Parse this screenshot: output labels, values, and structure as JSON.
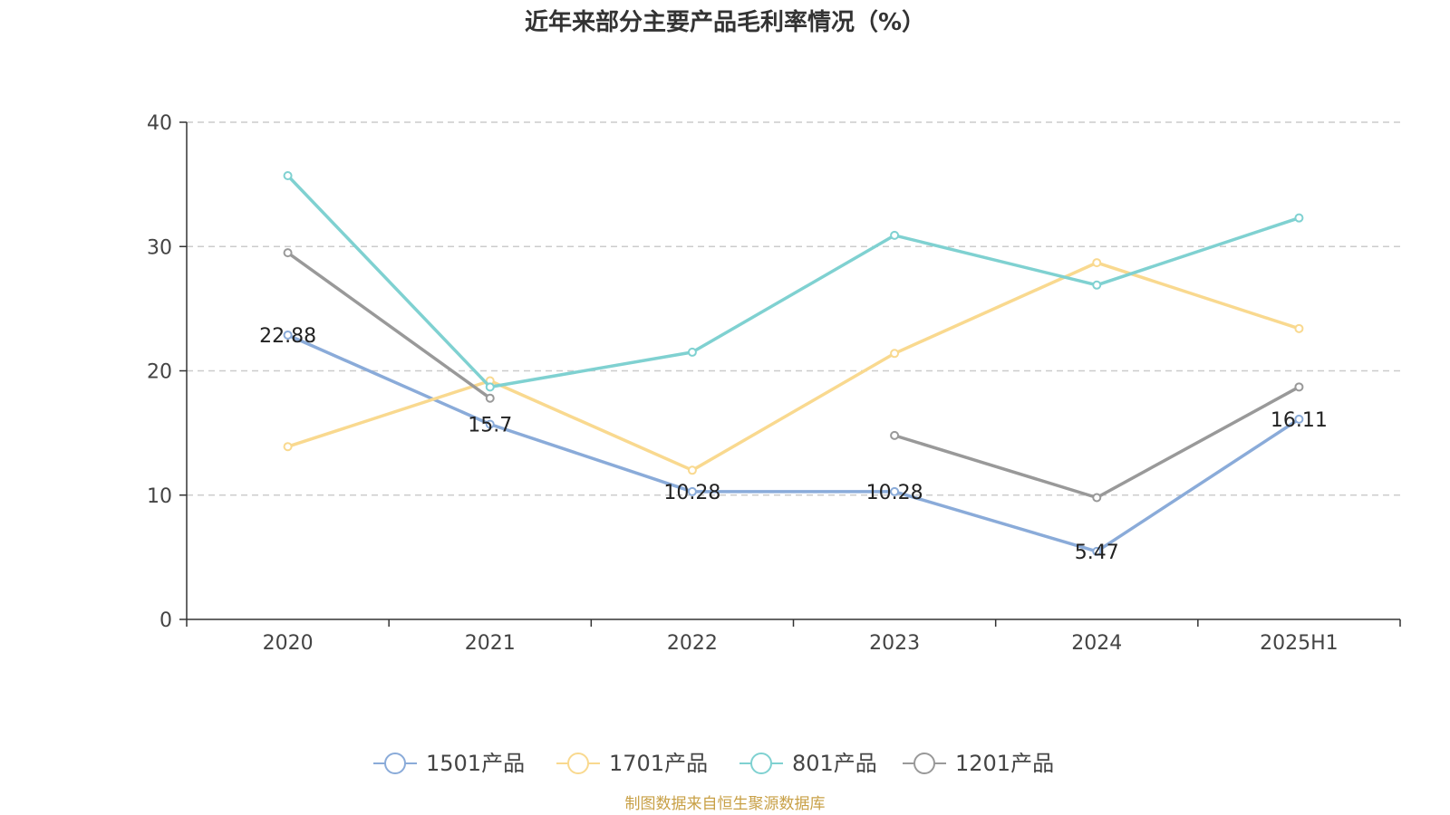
{
  "chart_data": {
    "type": "line",
    "title": "近年来部分主要产品毛利率情况（%）",
    "categories": [
      "2020",
      "2021",
      "2022",
      "2023",
      "2024",
      "2025H1"
    ],
    "ylim": [
      0,
      40
    ],
    "yticks": [
      0,
      10,
      20,
      30,
      40
    ],
    "grid": true,
    "legend_position": "bottom",
    "series": [
      {
        "name": "1501产品",
        "color": "#8aabd9",
        "values": [
          22.88,
          15.7,
          10.28,
          10.28,
          5.47,
          16.11
        ],
        "labels": [
          "22.88",
          "15.7",
          "10.28",
          "10.28",
          "5.47",
          "16.11"
        ]
      },
      {
        "name": "1701产品",
        "color": "#f9d98f",
        "values": [
          13.9,
          19.2,
          12.0,
          21.4,
          28.7,
          23.4
        ]
      },
      {
        "name": "801产品",
        "color": "#7fd1d1",
        "values": [
          35.7,
          18.7,
          21.5,
          30.9,
          26.9,
          32.3
        ]
      },
      {
        "name": "1201产品",
        "color": "#999999",
        "values": [
          29.5,
          17.8,
          null,
          14.8,
          9.8,
          18.7
        ]
      }
    ]
  },
  "source_text": "制图数据来自恒生聚源数据库"
}
